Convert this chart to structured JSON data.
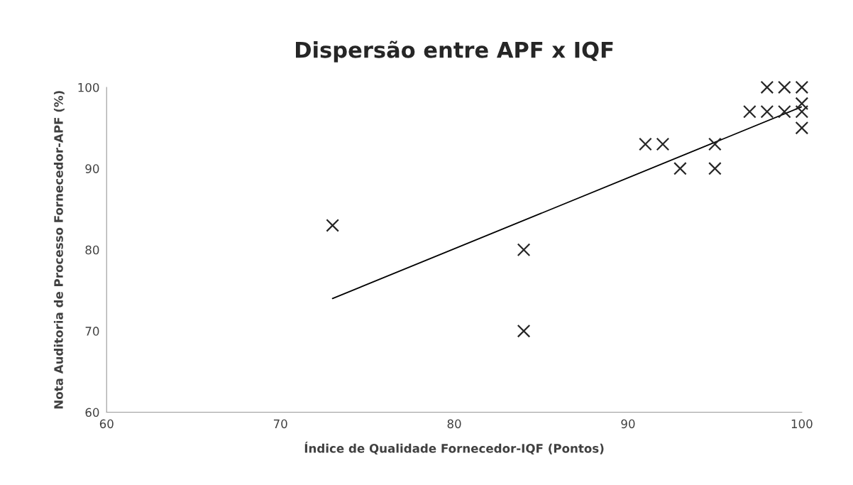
{
  "chart_data": {
    "type": "scatter",
    "title": "Dispersão entre APF x IQF",
    "xlabel": "Índice de Qualidade Fornecedor-IQF (Pontos)",
    "ylabel": "Nota Auditoria de Processo Fornecedor-APF (%)",
    "series": [
      {
        "color": "#262626",
        "x": [
          73,
          84,
          84,
          91,
          92,
          93,
          95,
          95,
          97,
          98,
          98,
          99,
          99,
          100,
          100,
          100,
          100
        ],
        "values": [
          83,
          80,
          70,
          93,
          93,
          90,
          93,
          90,
          97,
          97,
          100,
          100,
          97,
          100,
          98,
          97,
          95
        ]
      },
      {
        "type": "line",
        "marker": "none",
        "color": "#000000",
        "x": [
          73,
          100
        ],
        "values": [
          74,
          97.6
        ]
      }
    ],
    "marker": "cross",
    "grid": false,
    "legend": false,
    "xlim": [
      60,
      100
    ],
    "xticks": [
      60,
      70,
      80,
      90,
      100
    ],
    "ylim": [
      60,
      100
    ],
    "yticks": [
      60,
      70,
      80,
      90,
      100
    ]
  }
}
